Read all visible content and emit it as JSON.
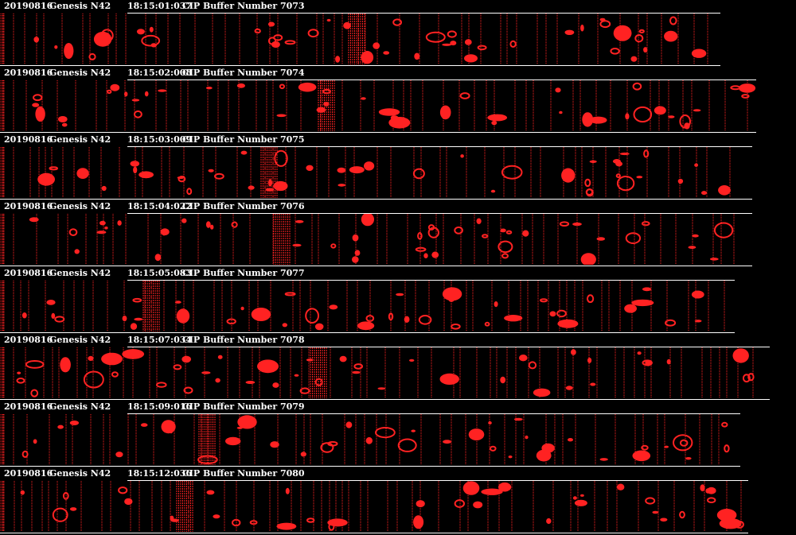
{
  "strips": [
    {
      "date": "20190816",
      "probe": "Genesis N42",
      "time": "18:15:01:037",
      "label": "CIP Buffer Number 7073",
      "width": 905,
      "top_start": 160,
      "seed": 11,
      "dense_at": 438
    },
    {
      "date": "20190816",
      "probe": "Genesis N42",
      "time": "18:15:02:008",
      "label": "CIP Buffer Number 7074",
      "width": 950,
      "top_start": 160,
      "seed": 23,
      "dense_at": 400
    },
    {
      "date": "20190816",
      "probe": "Genesis N42",
      "time": "18:15:03:009",
      "label": "CIP Buffer Number 7075",
      "width": 945,
      "top_start": 160,
      "seed": 37,
      "dense_at": 328
    },
    {
      "date": "20190816",
      "probe": "Genesis N42",
      "time": "18:15:04:022",
      "label": "CIP Buffer Number 7076",
      "width": 945,
      "top_start": 160,
      "seed": 41,
      "dense_at": 344
    },
    {
      "date": "20190816",
      "probe": "Genesis N42",
      "time": "18:15:05:083",
      "label": "CIP Buffer Number 7077",
      "width": 923,
      "top_start": 160,
      "seed": 53,
      "dense_at": 180
    },
    {
      "date": "20190816",
      "probe": "Genesis N42",
      "time": "18:15:07:034",
      "label": "CIP Buffer Number 7078",
      "width": 967,
      "top_start": 160,
      "seed": 67,
      "dense_at": 390
    },
    {
      "date": "20190816",
      "probe": "Genesis N42",
      "time": "18:15:09:016",
      "label": "CIP Buffer Number 7079",
      "width": 930,
      "top_start": 160,
      "seed": 79,
      "dense_at": 250
    },
    {
      "date": "20190816",
      "probe": "Genesis N42",
      "time": "18:15:12:036",
      "label": "CIP Buffer Number 7080",
      "width": 940,
      "top_start": 160,
      "seed": 97,
      "dense_at": 222
    }
  ],
  "colors": {
    "particle": "#ff2222",
    "background": "#000000",
    "text": "#ffffff"
  }
}
